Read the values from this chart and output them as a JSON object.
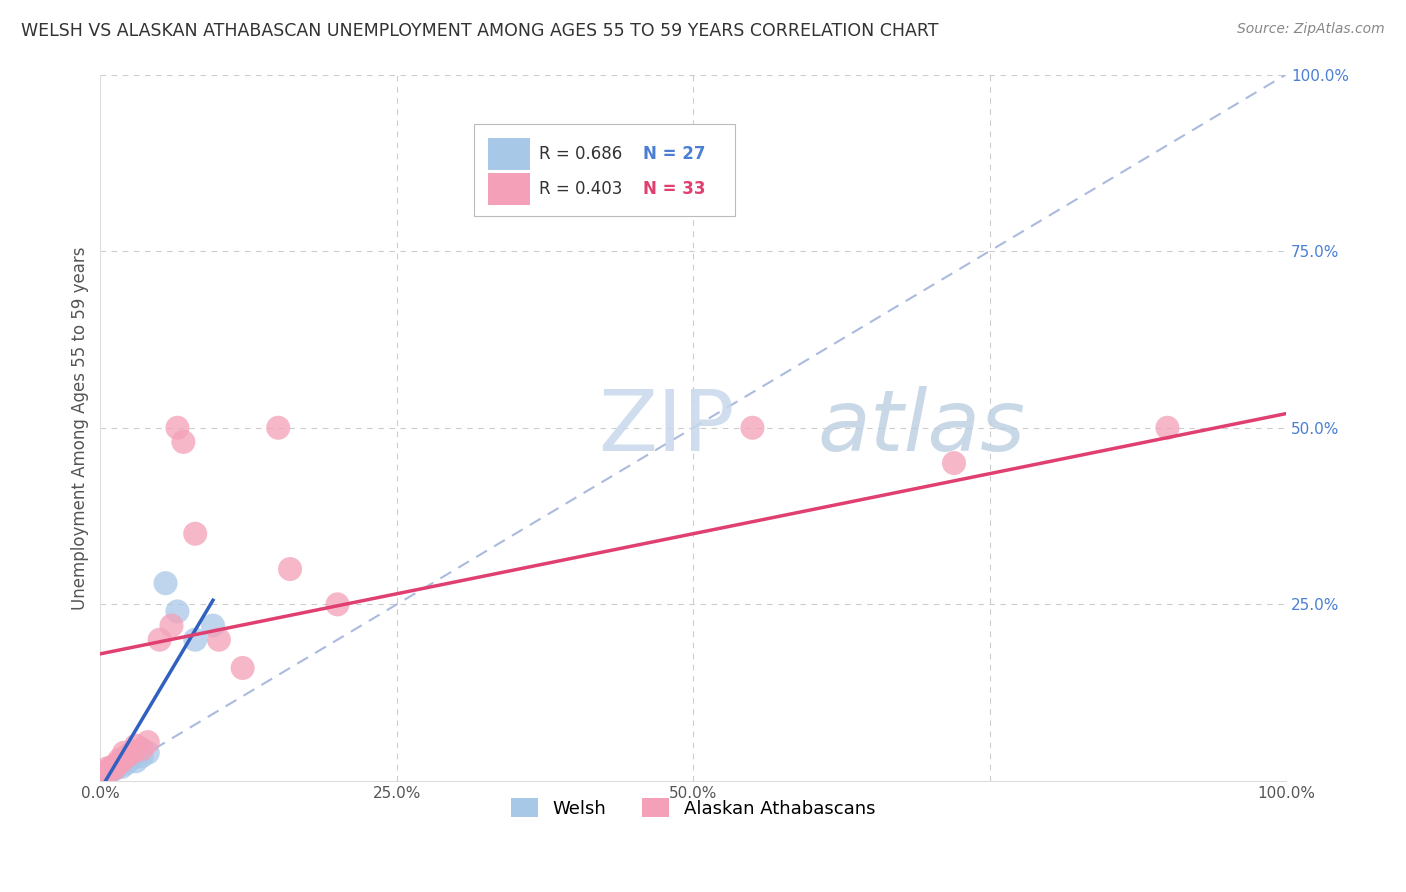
{
  "title": "WELSH VS ALASKAN ATHABASCAN UNEMPLOYMENT AMONG AGES 55 TO 59 YEARS CORRELATION CHART",
  "source": "Source: ZipAtlas.com",
  "ylabel": "Unemployment Among Ages 55 to 59 years",
  "xlim": [
    0.0,
    1.0
  ],
  "ylim": [
    0.0,
    1.0
  ],
  "xticks": [
    0.0,
    0.25,
    0.5,
    0.75,
    1.0
  ],
  "yticks": [
    0.0,
    0.25,
    0.5,
    0.75,
    1.0
  ],
  "xticklabels": [
    "0.0%",
    "25.0%",
    "50.0%",
    "",
    "100.0%"
  ],
  "yticklabels": [
    "",
    "25.0%",
    "50.0%",
    "75.0%",
    "100.0%"
  ],
  "welsh_color": "#a8c8e8",
  "athabascan_color": "#f4a0b8",
  "welsh_line_color": "#3060c0",
  "athabascan_line_color": "#e04070",
  "diagonal_color": "#aabbdd",
  "R_welsh": 0.686,
  "N_welsh": 27,
  "R_athabascan": 0.403,
  "N_athabascan": 33,
  "legend_label_welsh": "Welsh",
  "legend_label_athabascan": "Alaskan Athabascans",
  "watermark_zip": "ZIP",
  "watermark_atlas": "atlas",
  "welsh_x": [
    0.0,
    0.0,
    0.0,
    0.002,
    0.003,
    0.004,
    0.005,
    0.006,
    0.007,
    0.008,
    0.009,
    0.01,
    0.011,
    0.013,
    0.015,
    0.016,
    0.018,
    0.02,
    0.022,
    0.025,
    0.03,
    0.035,
    0.04,
    0.055,
    0.065,
    0.08,
    0.095
  ],
  "welsh_y": [
    0.0,
    0.003,
    0.008,
    0.005,
    0.01,
    0.008,
    0.012,
    0.01,
    0.015,
    0.013,
    0.018,
    0.015,
    0.02,
    0.018,
    0.022,
    0.025,
    0.02,
    0.03,
    0.025,
    0.03,
    0.028,
    0.035,
    0.04,
    0.28,
    0.24,
    0.2,
    0.22
  ],
  "athabascan_x": [
    0.0,
    0.0,
    0.0,
    0.002,
    0.004,
    0.005,
    0.006,
    0.008,
    0.01,
    0.012,
    0.015,
    0.016,
    0.018,
    0.02,
    0.022,
    0.025,
    0.028,
    0.03,
    0.035,
    0.04,
    0.05,
    0.06,
    0.065,
    0.07,
    0.08,
    0.1,
    0.12,
    0.15,
    0.16,
    0.2,
    0.55,
    0.72,
    0.9
  ],
  "athabascan_y": [
    0.0,
    0.005,
    0.01,
    0.008,
    0.012,
    0.01,
    0.018,
    0.015,
    0.02,
    0.018,
    0.025,
    0.03,
    0.028,
    0.04,
    0.035,
    0.038,
    0.042,
    0.05,
    0.045,
    0.055,
    0.2,
    0.22,
    0.5,
    0.48,
    0.35,
    0.2,
    0.16,
    0.5,
    0.3,
    0.25,
    0.5,
    0.45,
    0.5
  ],
  "ath_line_x0": 0.0,
  "ath_line_y0": 0.18,
  "ath_line_x1": 1.0,
  "ath_line_y1": 0.52
}
